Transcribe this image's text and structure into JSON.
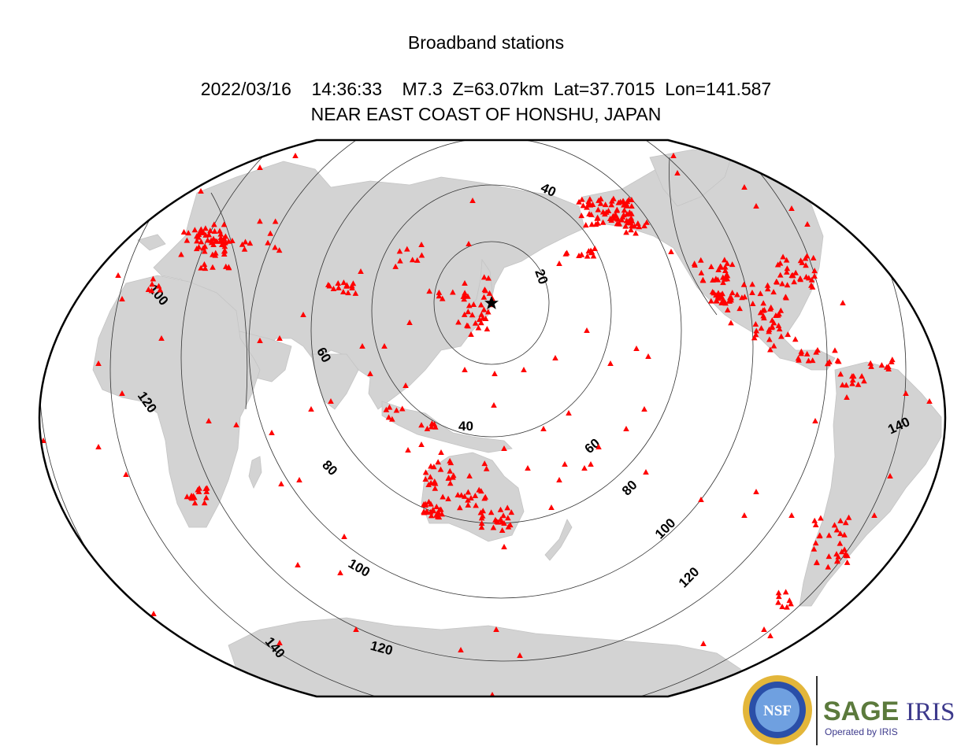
{
  "header": {
    "title": "Broadband stations",
    "event_line": "2022/03/16    14:36:33    M7.3  Z=63.07km  Lat=37.7015  Lon=141.587",
    "region": "NEAR EAST COAST OF HONSHU, JAPAN"
  },
  "map": {
    "projection": "Winkel-tripel style world map",
    "land_color": "#d3d3d3",
    "station_color": "#ff0000",
    "station_symbol": "triangle",
    "epicenter_symbol": "star",
    "contour_labels": [
      "20",
      "40",
      "40",
      "60",
      "60",
      "80",
      "80",
      "100",
      "100",
      "100",
      "120",
      "120",
      "120",
      "140",
      "140"
    ]
  },
  "logos": {
    "nsf": "NSF",
    "sage": "SAGE",
    "iris": "IRIS",
    "operated_by": "Operated by IRIS"
  }
}
